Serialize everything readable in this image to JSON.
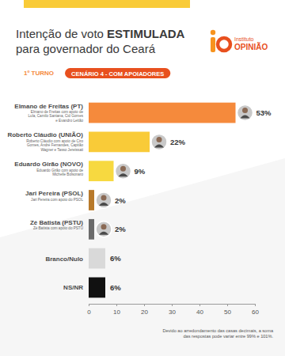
{
  "chart_data": {
    "type": "bar",
    "orientation": "horizontal",
    "title": [
      "Intenção de voto ESTIMULADA",
      "para governador do Ceará"
    ],
    "round_label": "1º TURNO",
    "scenario": "CENÁRIO 4 - COM APOIADORES",
    "logo": [
      "Instituto",
      "OPINIÃO"
    ],
    "categories": [
      "Elmano de Freitas (PT)",
      "Roberto Cláudio (UNIÃO)",
      "Eduardo Girão (NOVO)",
      "Jari Pereira (PSOL)",
      "Zé Batista (PSTU)",
      "Branco/Nulo",
      "NS/NR"
    ],
    "category_notes": [
      "Elmano de Freitas com apoio de Lula, Camilo Santana, Cid Gomes e Evandro Leitão",
      "Roberto Cláudio com apoio de Ciro Gomes, André Fernandes, Capitão Wagner e Tasso Jereissati",
      "Eduardo Girão com apoio de Michelle Bolsonaro",
      "Jari Pereira com apoio do PSOL",
      "Zé Batista com apoio do PSTU",
      null,
      null
    ],
    "values": [
      53,
      22,
      9,
      2,
      2,
      6,
      6
    ],
    "value_labels": [
      "53%",
      "22%",
      "9%",
      "2%",
      "2%",
      "6%",
      "6%"
    ],
    "colors": [
      "#F58A3C",
      "#F9CB38",
      "#F7D940",
      "#B87A2B",
      "#6B6B6B",
      "#D9D9D9",
      "#111111"
    ],
    "xlim": [
      0,
      60
    ],
    "xticks": [
      0,
      10,
      20,
      30,
      40,
      50,
      60
    ],
    "grid": false,
    "data_labels": true,
    "note": "Devido ao arredondamento das casas decimais, a soma das respostas pode variar entre 99% e 101%."
  }
}
